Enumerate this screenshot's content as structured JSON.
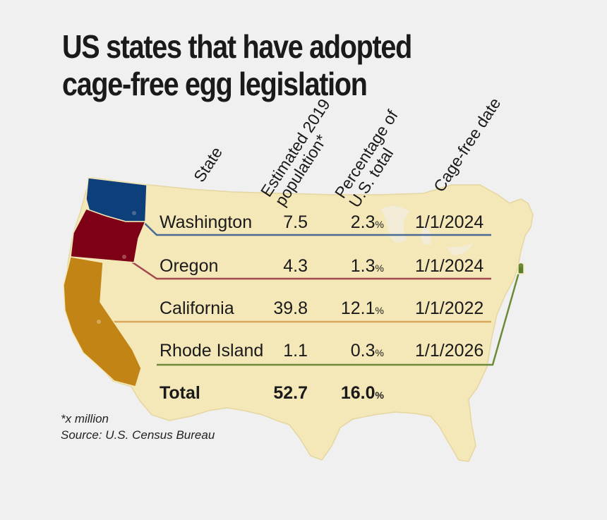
{
  "title": {
    "line1": "US states that have adopted",
    "line2": "cage-free egg legislation"
  },
  "columns": {
    "state": "State",
    "population_line1": "Estimated 2019",
    "population_line2": "population*",
    "percentage_line1": "Percentage of",
    "percentage_line2": "U.S. total",
    "date": "Cage-free date"
  },
  "rows": [
    {
      "state": "Washington",
      "population": "7.5",
      "percentage": "2.3",
      "pct_sign": "%",
      "date": "1/1/2024",
      "color": "#0d3f7a",
      "line_color": "#4a6a94"
    },
    {
      "state": "Oregon",
      "population": "4.3",
      "percentage": "1.3",
      "pct_sign": "%",
      "date": "1/1/2024",
      "color": "#7d0016",
      "line_color": "#a24a4e"
    },
    {
      "state": "California",
      "population": "39.8",
      "percentage": "12.1",
      "pct_sign": "%",
      "date": "1/1/2022",
      "color": "#c28415",
      "line_color": "#d9a75a"
    },
    {
      "state": "Rhode Island",
      "population": "1.1",
      "percentage": "0.3",
      "pct_sign": "%",
      "date": "1/1/2026",
      "color": "#5a7e2a",
      "line_color": "#6c8a3a"
    }
  ],
  "total": {
    "label": "Total",
    "population": "52.7",
    "percentage": "16.0",
    "pct_sign": "%"
  },
  "footnote": "*x million",
  "source": "Source: U.S. Census Bureau",
  "colors": {
    "map_fill": "#f4e7b8",
    "map_border": "#e8d9a4",
    "background": "#f0f0f0"
  }
}
